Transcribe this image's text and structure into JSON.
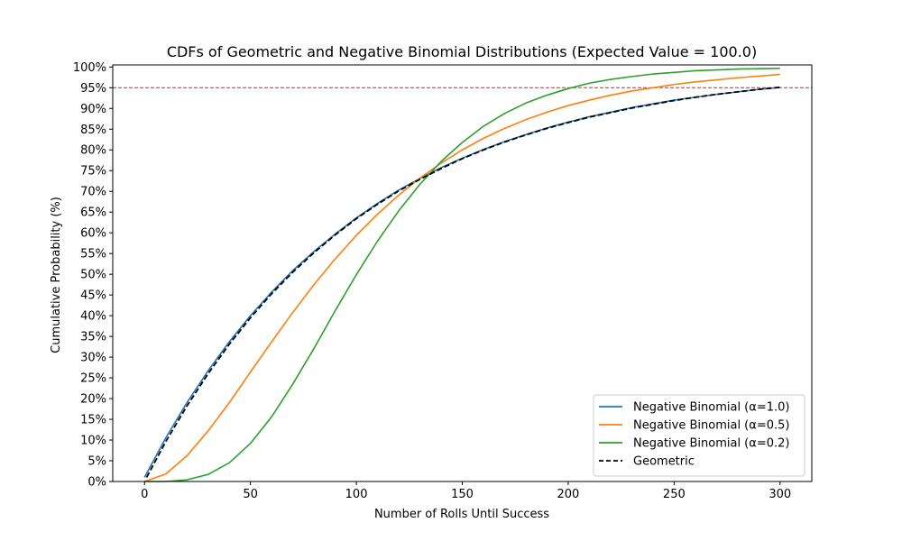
{
  "chart_data": {
    "type": "line",
    "title": "CDFs of Geometric and Negative Binomial Distributions (Expected Value = 100.0)",
    "xlabel": "Number of Rolls Until Success",
    "ylabel": "Cumulative Probability (%)",
    "xlim": [
      -15,
      315
    ],
    "ylim": [
      0,
      1.005
    ],
    "x_ticks": [
      0,
      50,
      100,
      150,
      200,
      250,
      300
    ],
    "x_tick_labels": [
      "0",
      "50",
      "100",
      "150",
      "200",
      "250",
      "300"
    ],
    "y_ticks": [
      0,
      0.05,
      0.1,
      0.15,
      0.2,
      0.25,
      0.3,
      0.35,
      0.4,
      0.45,
      0.5,
      0.55,
      0.6,
      0.65,
      0.7,
      0.75,
      0.8,
      0.85,
      0.9,
      0.95,
      1.0
    ],
    "y_tick_labels": [
      "0%",
      "5%",
      "10%",
      "15%",
      "20%",
      "25%",
      "30%",
      "35%",
      "40%",
      "45%",
      "50%",
      "55%",
      "60%",
      "65%",
      "70%",
      "75%",
      "80%",
      "85%",
      "90%",
      "95%",
      "100%"
    ],
    "grid": false,
    "legend_position": "lower-right",
    "reference_line": {
      "y": 0.95,
      "color": "#d62728",
      "style": "dashed"
    },
    "series": [
      {
        "name": "Negative Binomial (α=1.0)",
        "color": "#1f77b4",
        "style": "solid",
        "x": [
          0,
          10,
          20,
          30,
          40,
          50,
          60,
          70,
          80,
          90,
          100,
          110,
          120,
          130,
          140,
          150,
          160,
          170,
          180,
          190,
          200,
          210,
          220,
          230,
          240,
          250,
          260,
          270,
          280,
          290,
          300
        ],
        "y": [
          0.01,
          0.105,
          0.19,
          0.267,
          0.337,
          0.4,
          0.457,
          0.509,
          0.555,
          0.597,
          0.636,
          0.671,
          0.703,
          0.731,
          0.757,
          0.78,
          0.801,
          0.82,
          0.837,
          0.853,
          0.867,
          0.88,
          0.891,
          0.902,
          0.911,
          0.92,
          0.927,
          0.934,
          0.94,
          0.946,
          0.951
        ]
      },
      {
        "name": "Negative Binomial (α=0.5)",
        "color": "#ff7f0e",
        "style": "solid",
        "x": [
          0,
          10,
          20,
          30,
          40,
          50,
          60,
          70,
          80,
          90,
          100,
          110,
          120,
          130,
          140,
          150,
          160,
          170,
          180,
          190,
          200,
          210,
          220,
          230,
          240,
          250,
          260,
          270,
          280,
          290,
          300
        ],
        "y": [
          0.0,
          0.018,
          0.062,
          0.122,
          0.19,
          0.264,
          0.337,
          0.408,
          0.475,
          0.537,
          0.594,
          0.645,
          0.691,
          0.732,
          0.768,
          0.8,
          0.828,
          0.852,
          0.873,
          0.891,
          0.907,
          0.92,
          0.932,
          0.942,
          0.95,
          0.958,
          0.964,
          0.969,
          0.974,
          0.978,
          0.982
        ]
      },
      {
        "name": "Negative Binomial (α=0.2)",
        "color": "#2ca02c",
        "style": "solid",
        "x": [
          0,
          10,
          20,
          30,
          40,
          50,
          60,
          70,
          80,
          90,
          100,
          110,
          120,
          130,
          140,
          150,
          160,
          170,
          180,
          190,
          200,
          210,
          220,
          230,
          240,
          250,
          260,
          270,
          280,
          290,
          300
        ],
        "y": [
          0.0,
          0.0,
          0.004,
          0.017,
          0.045,
          0.092,
          0.156,
          0.235,
          0.321,
          0.412,
          0.499,
          0.58,
          0.653,
          0.717,
          0.772,
          0.818,
          0.857,
          0.888,
          0.913,
          0.932,
          0.948,
          0.961,
          0.97,
          0.977,
          0.983,
          0.987,
          0.991,
          0.993,
          0.995,
          0.996,
          0.997
        ]
      },
      {
        "name": "Geometric",
        "color": "#000000",
        "style": "dashed",
        "x": [
          1,
          10,
          20,
          30,
          40,
          50,
          60,
          70,
          80,
          90,
          100,
          110,
          120,
          130,
          140,
          150,
          160,
          170,
          180,
          190,
          200,
          210,
          220,
          230,
          240,
          250,
          260,
          270,
          280,
          290,
          300
        ],
        "y": [
          0.01,
          0.096,
          0.182,
          0.26,
          0.331,
          0.395,
          0.453,
          0.505,
          0.552,
          0.595,
          0.634,
          0.669,
          0.701,
          0.729,
          0.755,
          0.779,
          0.8,
          0.819,
          0.836,
          0.852,
          0.866,
          0.879,
          0.89,
          0.901,
          0.91,
          0.919,
          0.927,
          0.934,
          0.94,
          0.946,
          0.951
        ]
      }
    ]
  }
}
